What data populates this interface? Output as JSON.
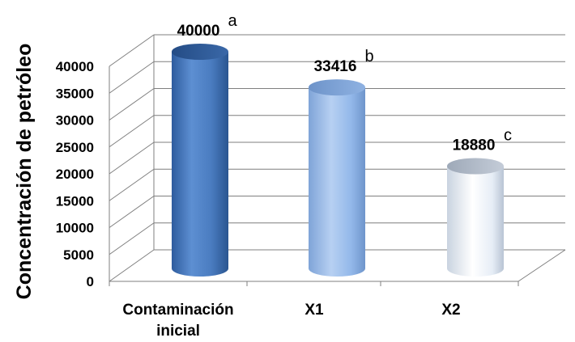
{
  "chart_data": {
    "type": "bar",
    "style": "3d-cylinder",
    "categories": [
      "Contaminación inicial",
      "X1",
      "X2"
    ],
    "category_lines": [
      [
        "Contaminación",
        "inicial"
      ],
      [
        "X1"
      ],
      [
        "X2"
      ]
    ],
    "values": [
      40000,
      33416,
      18880
    ],
    "data_labels": [
      "40000",
      "33416",
      "18880"
    ],
    "significance_letters": [
      "a",
      "b",
      "c"
    ],
    "ylabel": "Concentración de petróleo",
    "xlabel": "",
    "title": "",
    "ylim": [
      0,
      40000
    ],
    "yticks": [
      0,
      5000,
      10000,
      15000,
      20000,
      25000,
      30000,
      35000,
      40000
    ],
    "grid": true,
    "legend": "none",
    "bar_colors": [
      "#4a7cc0",
      "#93b8ea",
      "#dfe8f4"
    ]
  }
}
